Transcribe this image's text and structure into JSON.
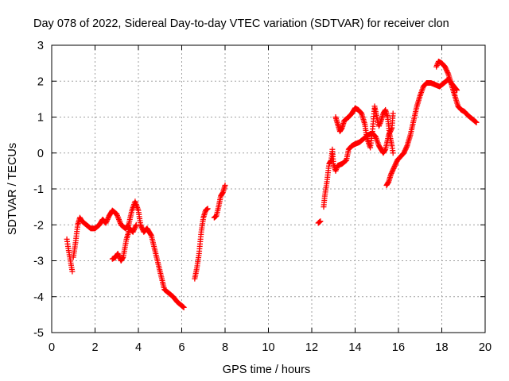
{
  "chart_data": {
    "type": "scatter",
    "title": "Day 078 of 2022, Sidereal Day-to-day VTEC variation (SDTVAR) for receiver clon",
    "xlabel": "GPS time / hours",
    "ylabel": "SDTVAR / TECUs",
    "xlim": [
      0,
      20
    ],
    "ylim": [
      -5,
      3
    ],
    "xticks": [
      0,
      2,
      4,
      6,
      8,
      10,
      12,
      14,
      16,
      18,
      20
    ],
    "yticks": [
      -5,
      -4,
      -3,
      -2,
      -1,
      0,
      1,
      2,
      3
    ],
    "grid": true,
    "marker": "+",
    "series_color": "#ff0000",
    "segments": [
      {
        "name": "seg-a",
        "points": [
          [
            0.7,
            -2.4
          ],
          [
            0.75,
            -2.6
          ],
          [
            0.95,
            -3.3
          ]
        ]
      },
      {
        "name": "seg-b",
        "points": [
          [
            1.0,
            -2.9
          ],
          [
            1.1,
            -2.5
          ],
          [
            1.2,
            -2.0
          ],
          [
            1.3,
            -1.8
          ],
          [
            1.4,
            -1.9
          ],
          [
            1.6,
            -2.0
          ],
          [
            1.8,
            -2.1
          ],
          [
            2.0,
            -2.1
          ],
          [
            2.2,
            -2.0
          ],
          [
            2.35,
            -1.85
          ],
          [
            2.5,
            -1.95
          ],
          [
            2.65,
            -1.75
          ],
          [
            2.8,
            -1.6
          ],
          [
            3.0,
            -1.7
          ],
          [
            3.2,
            -2.0
          ],
          [
            3.4,
            -2.1
          ],
          [
            3.55,
            -2.0
          ],
          [
            3.7,
            -1.6
          ],
          [
            3.85,
            -1.35
          ],
          [
            4.0,
            -1.6
          ],
          [
            4.1,
            -2.0
          ],
          [
            4.25,
            -2.2
          ],
          [
            4.4,
            -2.1
          ],
          [
            4.6,
            -2.3
          ],
          [
            4.8,
            -2.8
          ],
          [
            5.0,
            -3.3
          ],
          [
            5.2,
            -3.8
          ],
          [
            5.4,
            -3.9
          ],
          [
            5.6,
            -4.0
          ],
          [
            5.8,
            -4.15
          ],
          [
            6.0,
            -4.25
          ],
          [
            6.1,
            -4.3
          ]
        ]
      },
      {
        "name": "seg-c",
        "points": [
          [
            2.8,
            -2.95
          ],
          [
            2.95,
            -2.9
          ],
          [
            3.05,
            -2.8
          ],
          [
            3.2,
            -3.0
          ],
          [
            3.3,
            -2.9
          ],
          [
            3.45,
            -2.4
          ],
          [
            3.6,
            -2.1
          ],
          [
            3.75,
            -2.2
          ],
          [
            3.9,
            -2.0
          ]
        ]
      },
      {
        "name": "seg-d",
        "points": [
          [
            6.6,
            -3.5
          ],
          [
            6.7,
            -3.2
          ],
          [
            6.8,
            -2.8
          ],
          [
            6.9,
            -2.2
          ],
          [
            7.0,
            -1.8
          ],
          [
            7.1,
            -1.6
          ],
          [
            7.2,
            -1.55
          ]
        ]
      },
      {
        "name": "seg-e",
        "points": [
          [
            7.5,
            -1.8
          ],
          [
            7.6,
            -1.75
          ],
          [
            7.7,
            -1.5
          ],
          [
            7.8,
            -1.2
          ],
          [
            7.9,
            -1.1
          ],
          [
            8.0,
            -0.9
          ]
        ]
      },
      {
        "name": "seg-f",
        "points": [
          [
            12.3,
            -1.95
          ],
          [
            12.4,
            -1.9
          ]
        ]
      },
      {
        "name": "seg-g",
        "points": [
          [
            12.55,
            -1.5
          ],
          [
            12.6,
            -1.2
          ],
          [
            12.7,
            -0.8
          ],
          [
            12.8,
            -0.3
          ],
          [
            12.9,
            -0.2
          ],
          [
            12.95,
            0.1
          ],
          [
            13.0,
            -0.3
          ],
          [
            13.1,
            -0.5
          ],
          [
            13.2,
            -0.35
          ],
          [
            13.4,
            -0.3
          ],
          [
            13.6,
            -0.2
          ],
          [
            13.7,
            0.1
          ],
          [
            13.85,
            0.2
          ],
          [
            14.0,
            0.25
          ],
          [
            14.2,
            0.3
          ],
          [
            14.4,
            0.4
          ],
          [
            14.6,
            0.5
          ],
          [
            14.8,
            0.55
          ],
          [
            14.95,
            0.45
          ],
          [
            15.1,
            0.2
          ],
          [
            15.3,
            0.0
          ],
          [
            15.4,
            0.1
          ],
          [
            15.55,
            0.5
          ],
          [
            15.7,
            0.7
          ],
          [
            15.75,
            1.1
          ]
        ]
      },
      {
        "name": "seg-h",
        "points": [
          [
            13.1,
            1.0
          ],
          [
            13.2,
            0.8
          ],
          [
            13.3,
            0.6
          ],
          [
            13.4,
            0.7
          ],
          [
            13.5,
            0.9
          ],
          [
            13.7,
            1.0
          ],
          [
            13.85,
            1.1
          ],
          [
            14.0,
            1.25
          ],
          [
            14.15,
            1.2
          ],
          [
            14.3,
            1.1
          ],
          [
            14.45,
            0.8
          ],
          [
            14.55,
            0.4
          ],
          [
            14.7,
            0.15
          ],
          [
            14.8,
            0.6
          ],
          [
            14.9,
            1.3
          ],
          [
            15.0,
            1.0
          ],
          [
            15.1,
            0.75
          ],
          [
            15.2,
            0.9
          ],
          [
            15.3,
            1.1
          ],
          [
            15.4,
            1.2
          ],
          [
            15.5,
            1.0
          ],
          [
            15.6,
            0.5
          ],
          [
            15.7,
            0.2
          ],
          [
            15.75,
            0.0
          ]
        ]
      },
      {
        "name": "seg-i",
        "points": [
          [
            15.45,
            -0.9
          ],
          [
            15.55,
            -0.8
          ],
          [
            15.65,
            -0.6
          ],
          [
            15.8,
            -0.4
          ],
          [
            15.95,
            -0.2
          ],
          [
            16.1,
            -0.1
          ],
          [
            16.25,
            0.0
          ],
          [
            16.4,
            0.2
          ],
          [
            16.55,
            0.5
          ],
          [
            16.7,
            0.9
          ],
          [
            16.85,
            1.3
          ],
          [
            17.0,
            1.6
          ],
          [
            17.15,
            1.85
          ],
          [
            17.3,
            1.95
          ],
          [
            17.5,
            1.95
          ],
          [
            17.7,
            1.9
          ],
          [
            17.9,
            1.85
          ],
          [
            18.1,
            1.95
          ],
          [
            18.3,
            2.05
          ],
          [
            18.5,
            1.9
          ],
          [
            18.7,
            1.75
          ]
        ]
      },
      {
        "name": "seg-j",
        "points": [
          [
            17.75,
            2.4
          ],
          [
            17.85,
            2.55
          ],
          [
            18.0,
            2.5
          ],
          [
            18.15,
            2.4
          ],
          [
            18.3,
            2.2
          ],
          [
            18.45,
            1.9
          ],
          [
            18.6,
            1.6
          ],
          [
            18.75,
            1.3
          ],
          [
            18.9,
            1.2
          ],
          [
            19.05,
            1.15
          ],
          [
            19.2,
            1.05
          ],
          [
            19.4,
            0.95
          ],
          [
            19.6,
            0.85
          ]
        ]
      }
    ]
  }
}
